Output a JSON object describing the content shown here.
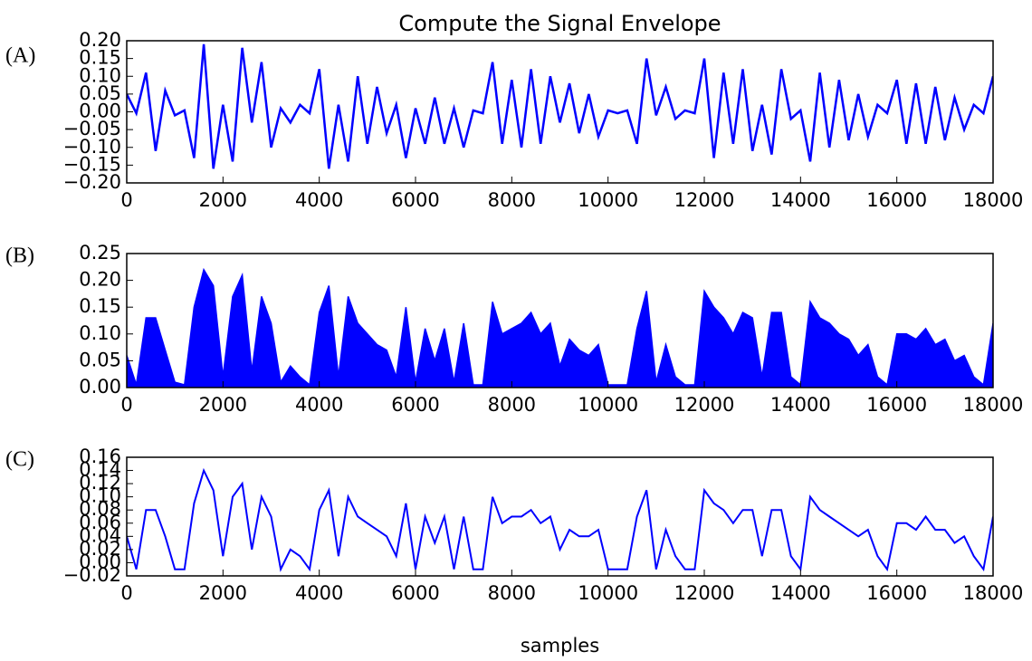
{
  "chart_data": [
    {
      "type": "line",
      "label": "(A)",
      "title": "Compute the Signal Envelope",
      "color": "#0000ff",
      "x": [
        0,
        200,
        400,
        600,
        800,
        1000,
        1200,
        1400,
        1600,
        1800,
        2000,
        2200,
        2400,
        2600,
        2800,
        3000,
        3200,
        3400,
        3600,
        3800,
        4000,
        4200,
        4400,
        4600,
        4800,
        5000,
        5200,
        5400,
        5600,
        5800,
        6000,
        6200,
        6400,
        6600,
        6800,
        7000,
        7200,
        7400,
        7600,
        7800,
        8000,
        8200,
        8400,
        8600,
        8800,
        9000,
        9200,
        9400,
        9600,
        9800,
        10000,
        10200,
        10400,
        10600,
        10800,
        11000,
        11200,
        11400,
        11600,
        11800,
        12000,
        12200,
        12400,
        12600,
        12800,
        13000,
        13200,
        13400,
        13600,
        13800,
        14000,
        14200,
        14400,
        14600,
        14800,
        15000,
        15200,
        15400,
        15600,
        15800,
        16000,
        16200,
        16400,
        16600,
        16800,
        17000,
        17200,
        17400,
        17600,
        17800,
        18000
      ],
      "values": [
        0.05,
        -0.004,
        0.11,
        -0.11,
        0.06,
        -0.01,
        0.004,
        -0.13,
        0.19,
        -0.16,
        0.02,
        -0.14,
        0.18,
        -0.03,
        0.14,
        -0.1,
        0.01,
        -0.03,
        0.02,
        -0.004,
        0.12,
        -0.16,
        0.02,
        -0.14,
        0.1,
        -0.09,
        0.07,
        -0.06,
        0.02,
        -0.13,
        0.01,
        -0.09,
        0.04,
        -0.09,
        0.01,
        -0.1,
        0.004,
        -0.004,
        0.14,
        -0.09,
        0.09,
        -0.1,
        0.12,
        -0.09,
        0.1,
        -0.03,
        0.08,
        -0.06,
        0.05,
        -0.07,
        0.004,
        -0.004,
        0.004,
        -0.09,
        0.15,
        -0.01,
        0.07,
        -0.02,
        0.004,
        -0.004,
        0.15,
        -0.13,
        0.11,
        -0.09,
        0.12,
        -0.11,
        0.02,
        -0.12,
        0.12,
        -0.02,
        0.004,
        -0.14,
        0.11,
        -0.1,
        0.09,
        -0.08,
        0.05,
        -0.07,
        0.02,
        -0.004,
        0.09,
        -0.09,
        0.08,
        -0.09,
        0.07,
        -0.08,
        0.04,
        -0.05,
        0.02,
        -0.004,
        0.1
      ],
      "xlim": [
        0,
        18000
      ],
      "xticks": [
        0,
        2000,
        4000,
        6000,
        8000,
        10000,
        12000,
        14000,
        16000,
        18000
      ],
      "ylim": [
        -0.2,
        0.2
      ],
      "yticks": [
        {
          "value": -0.2,
          "label": "−0.20"
        },
        {
          "value": -0.15,
          "label": "−0.15"
        },
        {
          "value": -0.1,
          "label": "−0.10"
        },
        {
          "value": -0.05,
          "label": "−0.05"
        },
        {
          "value": 0,
          "label": "0.00"
        },
        {
          "value": 0.05,
          "label": "0.05"
        },
        {
          "value": 0.1,
          "label": "0.10"
        },
        {
          "value": 0.15,
          "label": "0.15"
        },
        {
          "value": 0.2,
          "label": "0.20"
        }
      ]
    },
    {
      "type": "area",
      "label": "(B)",
      "color": "#0000ff",
      "x": [
        0,
        200,
        400,
        600,
        800,
        1000,
        1200,
        1400,
        1600,
        1800,
        2000,
        2200,
        2400,
        2600,
        2800,
        3000,
        3200,
        3400,
        3600,
        3800,
        4000,
        4200,
        4400,
        4600,
        4800,
        5000,
        5200,
        5400,
        5600,
        5800,
        6000,
        6200,
        6400,
        6600,
        6800,
        7000,
        7200,
        7400,
        7600,
        7800,
        8000,
        8200,
        8400,
        8600,
        8800,
        9000,
        9200,
        9400,
        9600,
        9800,
        10000,
        10200,
        10400,
        10600,
        10800,
        11000,
        11200,
        11400,
        11600,
        11800,
        12000,
        12200,
        12400,
        12600,
        12800,
        13000,
        13200,
        13400,
        13600,
        13800,
        14000,
        14200,
        14400,
        14600,
        14800,
        15000,
        15200,
        15400,
        15600,
        15800,
        16000,
        16200,
        16400,
        16600,
        16800,
        17000,
        17200,
        17400,
        17600,
        17800,
        18000
      ],
      "values": [
        0.06,
        0.005,
        0.13,
        0.13,
        0.07,
        0.01,
        0.005,
        0.15,
        0.22,
        0.19,
        0.02,
        0.17,
        0.21,
        0.03,
        0.17,
        0.12,
        0.01,
        0.04,
        0.02,
        0.005,
        0.14,
        0.19,
        0.02,
        0.17,
        0.12,
        0.1,
        0.08,
        0.07,
        0.02,
        0.15,
        0.01,
        0.11,
        0.05,
        0.11,
        0.01,
        0.12,
        0.005,
        0.005,
        0.16,
        0.1,
        0.11,
        0.12,
        0.14,
        0.1,
        0.12,
        0.04,
        0.09,
        0.07,
        0.06,
        0.08,
        0.005,
        0.005,
        0.005,
        0.11,
        0.18,
        0.01,
        0.08,
        0.02,
        0.005,
        0.005,
        0.18,
        0.15,
        0.13,
        0.1,
        0.14,
        0.13,
        0.02,
        0.14,
        0.14,
        0.02,
        0.005,
        0.16,
        0.13,
        0.12,
        0.1,
        0.09,
        0.06,
        0.08,
        0.02,
        0.005,
        0.1,
        0.1,
        0.09,
        0.11,
        0.08,
        0.09,
        0.05,
        0.06,
        0.02,
        0.005,
        0.12
      ],
      "xlim": [
        0,
        18000
      ],
      "xticks": [
        0,
        2000,
        4000,
        6000,
        8000,
        10000,
        12000,
        14000,
        16000,
        18000
      ],
      "ylim": [
        0,
        0.25
      ],
      "yticks": [
        {
          "value": 0,
          "label": "0.00"
        },
        {
          "value": 0.05,
          "label": "0.05"
        },
        {
          "value": 0.1,
          "label": "0.10"
        },
        {
          "value": 0.15,
          "label": "0.15"
        },
        {
          "value": 0.2,
          "label": "0.20"
        },
        {
          "value": 0.25,
          "label": "0.25"
        }
      ]
    },
    {
      "type": "line",
      "label": "(C)",
      "xlabel": "samples",
      "color": "#0000ff",
      "x": [
        0,
        200,
        400,
        600,
        800,
        1000,
        1200,
        1400,
        1600,
        1800,
        2000,
        2200,
        2400,
        2600,
        2800,
        3000,
        3200,
        3400,
        3600,
        3800,
        4000,
        4200,
        4400,
        4600,
        4800,
        5000,
        5200,
        5400,
        5600,
        5800,
        6000,
        6200,
        6400,
        6600,
        6800,
        7000,
        7200,
        7400,
        7600,
        7800,
        8000,
        8200,
        8400,
        8600,
        8800,
        9000,
        9200,
        9400,
        9600,
        9800,
        10000,
        10200,
        10400,
        10600,
        10800,
        11000,
        11200,
        11400,
        11600,
        11800,
        12000,
        12200,
        12400,
        12600,
        12800,
        13000,
        13200,
        13400,
        13600,
        13800,
        14000,
        14200,
        14400,
        14600,
        14800,
        15000,
        15200,
        15400,
        15600,
        15800,
        16000,
        16200,
        16400,
        16600,
        16800,
        17000,
        17200,
        17400,
        17600,
        17800,
        18000
      ],
      "values": [
        0.04,
        -0.01,
        0.08,
        0.08,
        0.04,
        -0.01,
        -0.01,
        0.09,
        0.14,
        0.11,
        0.01,
        0.1,
        0.12,
        0.02,
        0.1,
        0.07,
        -0.01,
        0.02,
        0.01,
        -0.01,
        0.08,
        0.11,
        0.01,
        0.1,
        0.07,
        0.06,
        0.05,
        0.04,
        0.01,
        0.09,
        -0.01,
        0.07,
        0.03,
        0.07,
        -0.01,
        0.07,
        -0.01,
        -0.01,
        0.1,
        0.06,
        0.07,
        0.07,
        0.08,
        0.06,
        0.07,
        0.02,
        0.05,
        0.04,
        0.04,
        0.05,
        -0.01,
        -0.01,
        -0.01,
        0.07,
        0.11,
        -0.01,
        0.05,
        0.01,
        -0.01,
        -0.01,
        0.11,
        0.09,
        0.08,
        0.06,
        0.08,
        0.08,
        0.01,
        0.08,
        0.08,
        0.01,
        -0.01,
        0.1,
        0.08,
        0.07,
        0.06,
        0.05,
        0.04,
        0.05,
        0.01,
        -0.01,
        0.06,
        0.06,
        0.05,
        0.07,
        0.05,
        0.05,
        0.03,
        0.04,
        0.01,
        -0.01,
        0.07
      ],
      "xlim": [
        0,
        18000
      ],
      "xticks": [
        0,
        2000,
        4000,
        6000,
        8000,
        10000,
        12000,
        14000,
        16000,
        18000
      ],
      "ylim": [
        -0.02,
        0.16
      ],
      "yticks": [
        {
          "value": -0.02,
          "label": "−0.02"
        },
        {
          "value": 0,
          "label": "0.00"
        },
        {
          "value": 0.02,
          "label": "0.02"
        },
        {
          "value": 0.04,
          "label": "0.04"
        },
        {
          "value": 0.06,
          "label": "0.06"
        },
        {
          "value": 0.08,
          "label": "0.08"
        },
        {
          "value": 0.1,
          "label": "0.10"
        },
        {
          "value": 0.12,
          "label": "0.12"
        },
        {
          "value": 0.14,
          "label": "0.14"
        },
        {
          "value": 0.16,
          "label": "0.16"
        }
      ]
    }
  ]
}
